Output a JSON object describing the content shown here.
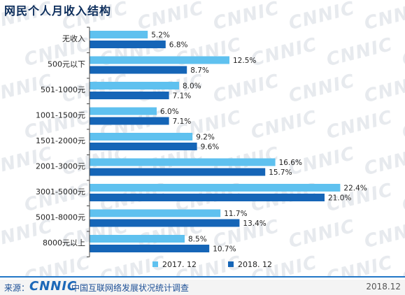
{
  "page": {
    "title": "网民个人月收入结构",
    "watermark_text": "CNNIC"
  },
  "footer": {
    "source_label": "来源：",
    "logo_text": "CNNIC",
    "report_name": "中国互联网络发展状况统计调查",
    "date": "2018.12"
  },
  "colors": {
    "series_2017": "#5fc1ef",
    "series_2018": "#1565b7",
    "axis": "#444444",
    "title": "#0d2e5c",
    "footer_accent": "#2277c6"
  },
  "chart_data": {
    "type": "bar",
    "orientation": "horizontal",
    "title": "网民个人月收入结构",
    "categories": [
      "无收入",
      "500元以下",
      "501-1000元",
      "1001-1500元",
      "1501-2000元",
      "2001-3000元",
      "3001-5000元",
      "5001-8000元",
      "8000元以上"
    ],
    "series": [
      {
        "name": "2017. 12",
        "values": [
          5.2,
          12.5,
          8.0,
          6.0,
          9.2,
          16.6,
          22.4,
          11.7,
          8.5
        ],
        "labels": [
          "5.2%",
          "12.5%",
          "8.0%",
          "6.0%",
          "9.2%",
          "16.6%",
          "22.4%",
          "11.7%",
          "8.5%"
        ]
      },
      {
        "name": "2018. 12",
        "values": [
          6.8,
          8.7,
          7.1,
          7.1,
          9.6,
          15.7,
          21.0,
          13.4,
          10.7
        ],
        "labels": [
          "6.8%",
          "8.7%",
          "7.1%",
          "7.1%",
          "9.6%",
          "15.7%",
          "21.0%",
          "13.4%",
          "10.7%"
        ]
      }
    ],
    "xlim": [
      0,
      23.4
    ],
    "grid": false,
    "legend_position": "bottom-center"
  }
}
